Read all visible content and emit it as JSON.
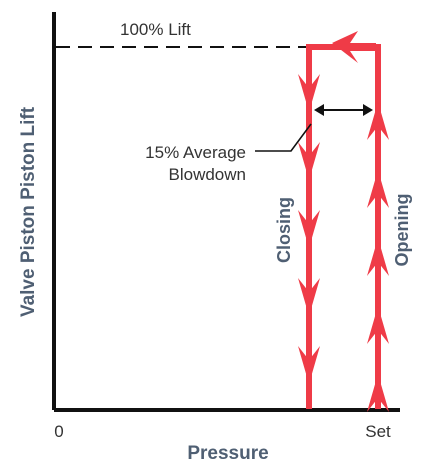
{
  "diagram": {
    "lift_label": "100% Lift",
    "blowdown_line1": "15% Average",
    "blowdown_line2": "Blowdown",
    "closing_label": "Closing",
    "opening_label": "Opening",
    "y_axis_label": "Valve Piston Piston Lift",
    "x_axis_label": "Pressure",
    "x_tick_zero": "0",
    "x_tick_set": "Set"
  },
  "colors": {
    "axis": "#111111",
    "curve": "#ef3b47",
    "text": "#333333",
    "label_bold": "#4f5f73",
    "dash": "#111111"
  }
}
